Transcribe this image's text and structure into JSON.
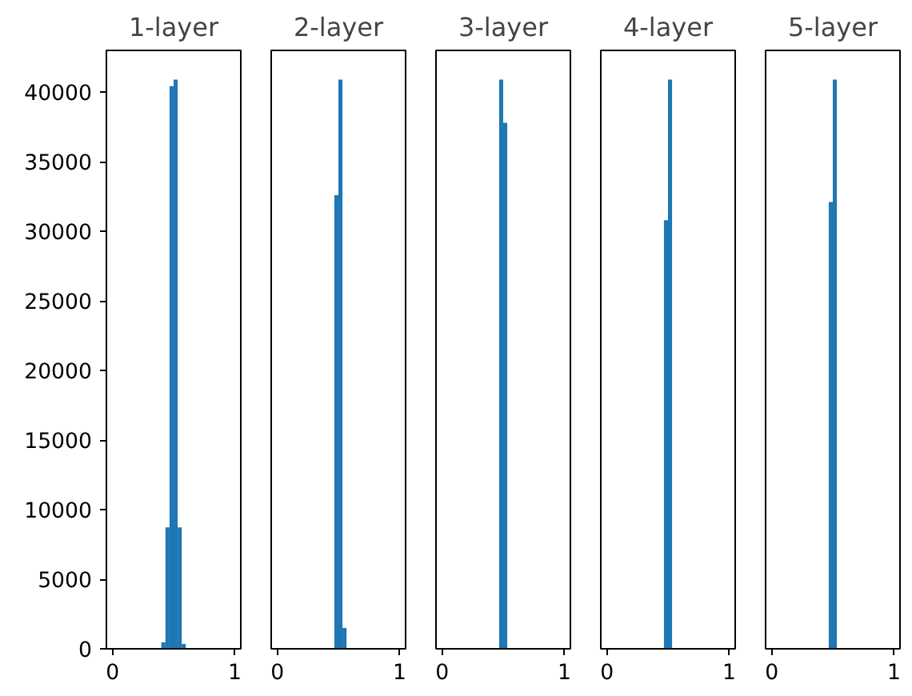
{
  "chart_data": [
    {
      "type": "histogram",
      "title": "1-layer",
      "bins": [
        0.4,
        0.4333,
        0.4667,
        0.5,
        0.5333,
        0.5667,
        0.6
      ],
      "values": [
        470,
        8720,
        40430,
        40900,
        8720,
        350
      ],
      "color": "#1f77b4",
      "xlim": [
        -0.05,
        1.05
      ],
      "xticks": [
        0,
        1
      ],
      "ylim": [
        0,
        43000
      ],
      "yticks": [
        0,
        5000,
        10000,
        15000,
        20000,
        25000,
        30000,
        35000,
        40000
      ],
      "grid": false
    },
    {
      "type": "histogram",
      "title": "2-layer",
      "bins": [
        0.4667,
        0.5,
        0.5333,
        0.5667
      ],
      "values": [
        32600,
        40900,
        1500
      ],
      "color": "#1f77b4",
      "xlim": [
        -0.05,
        1.05
      ],
      "xticks": [
        0,
        1
      ],
      "ylim": [
        0,
        43000
      ],
      "tick_labels": "x",
      "grid": false
    },
    {
      "type": "histogram",
      "title": "3-layer",
      "bins": [
        0.4667,
        0.5,
        0.5333
      ],
      "values": [
        40900,
        37800
      ],
      "color": "#1f77b4",
      "xlim": [
        -0.05,
        1.05
      ],
      "xticks": [
        0,
        1
      ],
      "ylim": [
        0,
        43000
      ],
      "tick_labels": "x",
      "grid": false
    },
    {
      "type": "histogram",
      "title": "4-layer",
      "bins": [
        0.4667,
        0.5,
        0.5333
      ],
      "values": [
        30800,
        40900
      ],
      "color": "#1f77b4",
      "xlim": [
        -0.05,
        1.05
      ],
      "xticks": [
        0,
        1
      ],
      "ylim": [
        0,
        43000
      ],
      "tick_labels": "x",
      "grid": false
    },
    {
      "type": "histogram",
      "title": "5-layer",
      "bins": [
        0.4667,
        0.5,
        0.5333
      ],
      "values": [
        32100,
        40900
      ],
      "color": "#1f77b4",
      "xlim": [
        -0.05,
        1.05
      ],
      "xticks": [
        0,
        1
      ],
      "ylim": [
        0,
        43000
      ],
      "tick_labels": "x",
      "grid": false
    }
  ]
}
